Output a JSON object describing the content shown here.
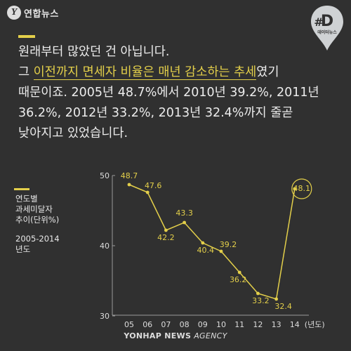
{
  "header": {
    "logo_mark": "Y",
    "logo_text": "연합뉴스",
    "badge_letter": "D",
    "badge_sub": "데이터뉴스"
  },
  "body": {
    "line1": "원래부터 많았던 건 아닙니다.",
    "line2_pre": "그 ",
    "line2_highlight": "이전까지 면세자 비율은 매년 감소하는 추세",
    "line2_post": "였기",
    "line3": "때문이죠. 2005년 48.7%에서 2010년 39.2%, 2011년",
    "line4": "36.2%, 2012년 33.2%, 2013년 32.4%까지 줄곧",
    "line5": "낮아지고 있었습니다."
  },
  "chart_caption": {
    "title1": "연도별",
    "title2": "과세미달자",
    "title3": "추이(단위%)",
    "range": "2005-2014",
    "range_suffix": "년도"
  },
  "chart_data": {
    "type": "line",
    "categories": [
      "05",
      "06",
      "07",
      "08",
      "09",
      "10",
      "11",
      "12",
      "13",
      "14"
    ],
    "series": [
      {
        "values": [
          48.7,
          47.6,
          42.2,
          43.3,
          40.4,
          39.2,
          36.2,
          33.2,
          32.4,
          48.1
        ]
      }
    ],
    "value_labels": [
      "48.7",
      "47.6",
      "42.2",
      "43.3",
      "40.4",
      "39.2",
      "36.2",
      "33.2",
      "32.4",
      "48.1"
    ],
    "y_ticks": [
      "50",
      "40",
      "30"
    ],
    "y_tick_values": [
      50,
      40,
      30
    ],
    "x_unit": "(년도)",
    "ylim": [
      30,
      50
    ],
    "grid": false,
    "highlighted_point": "14",
    "line_color": "#e3cf4a",
    "axis_color": "#9a9a9a"
  },
  "footer": {
    "brand": "YONHAP NEWS",
    "agency": "AGENCY"
  }
}
